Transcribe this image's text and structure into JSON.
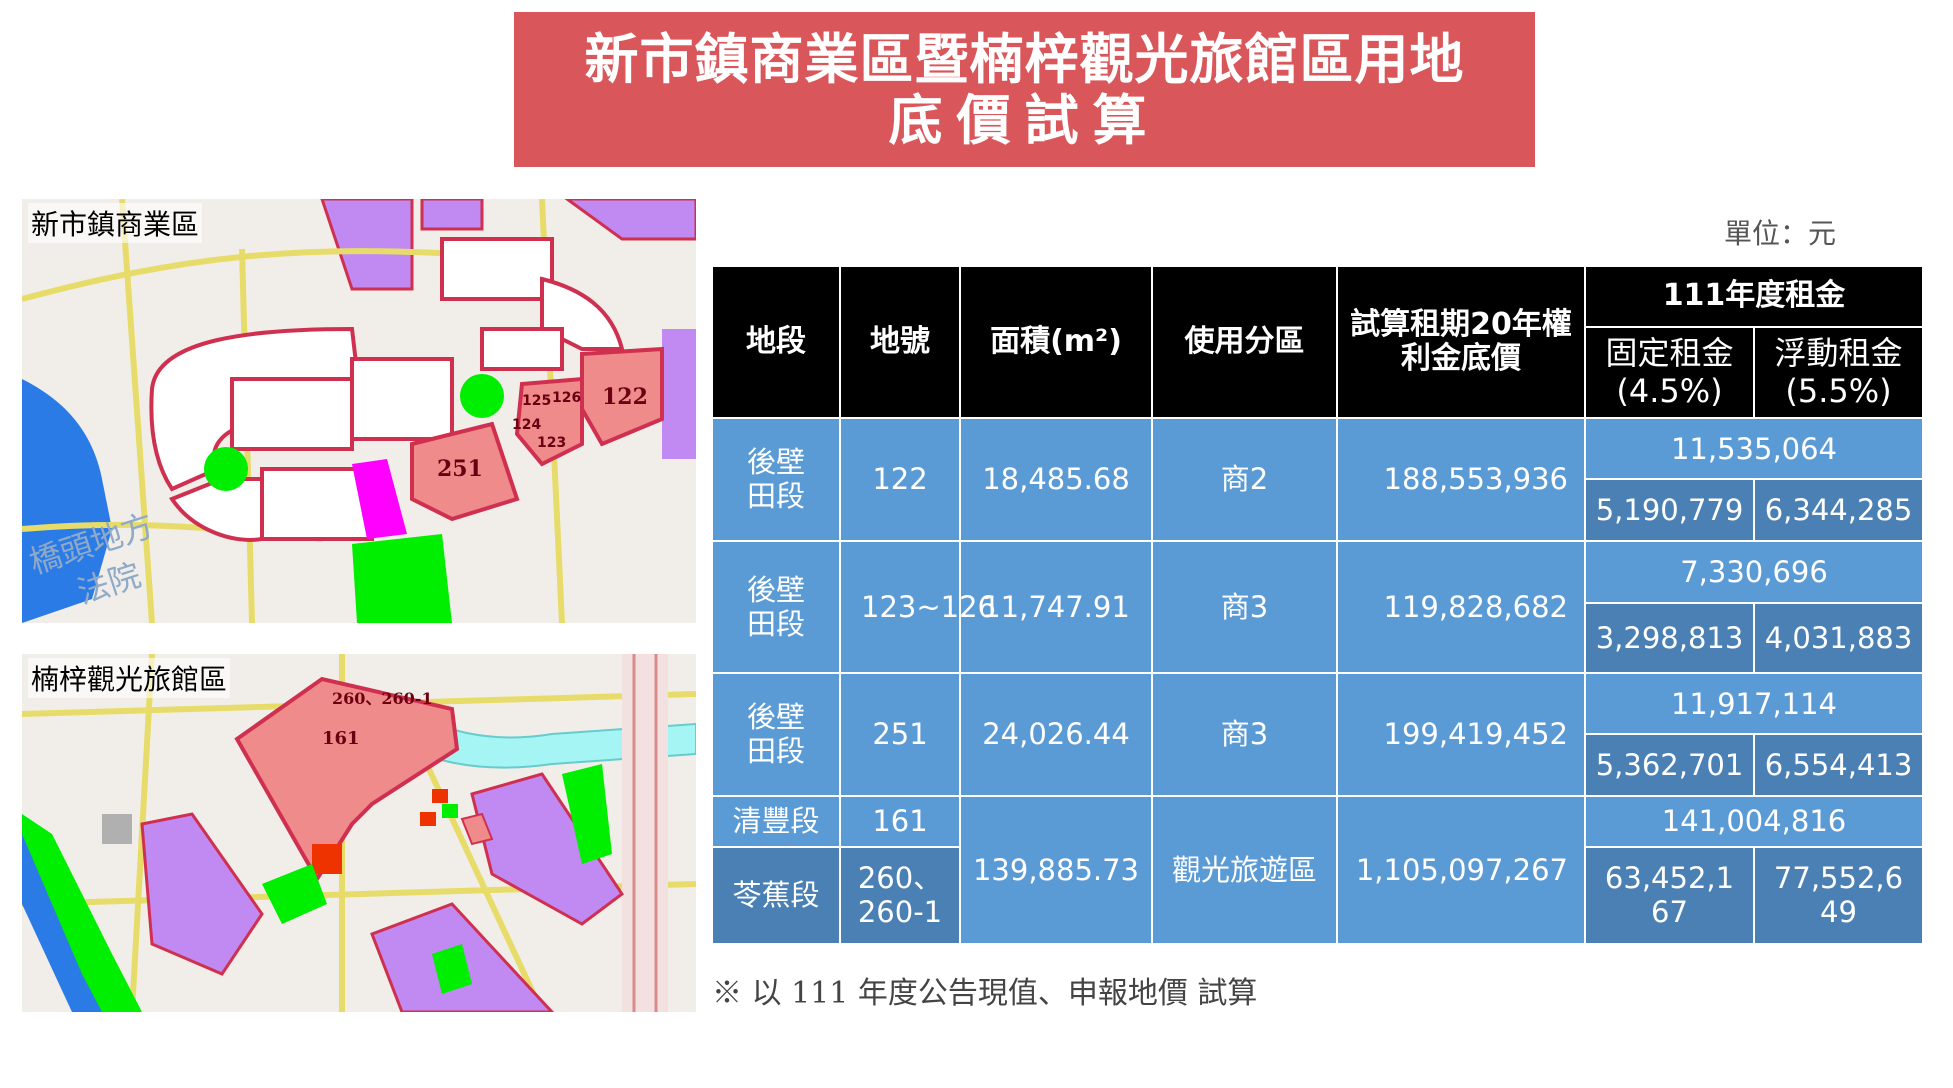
{
  "title": {
    "line1": "新市鎮商業區暨楠梓觀光旅館區用地",
    "line2": "底價試算"
  },
  "unit_label": "單位：元",
  "footnote": "※ 以 111 年度公告現值、申報地價 試算",
  "maps": {
    "top": {
      "label": "新市鎮商業區",
      "parcels": [
        "251",
        "122",
        "125",
        "126",
        "124",
        "123"
      ],
      "watermark_line1": "橋頭地方",
      "watermark_line2": "法院"
    },
    "bottom": {
      "label": "楠梓觀光旅館區",
      "parcels": [
        "161",
        "260、260-1"
      ]
    }
  },
  "table": {
    "headers": {
      "section": "地段",
      "lot": "地號",
      "area": "面積(m²)",
      "zone": "使用分區",
      "premium": "試算租期20年權利金底價",
      "rent_group": "111年度租金",
      "fixed_rent": "固定租金",
      "fixed_rate": "(4.5%)",
      "float_rent": "浮動租金",
      "float_rate": "(5.5%)"
    },
    "rows": [
      {
        "section": "後壁田段",
        "lot": "122",
        "area": "18,485.68",
        "zone": "商2",
        "premium": "188,553,936",
        "rent_total": "11,535,064",
        "fixed": "5,190,779",
        "float": "6,344,285"
      },
      {
        "section": "後壁田段",
        "lot": "123~126",
        "area": "11,747.91",
        "zone": "商3",
        "premium": "119,828,682",
        "rent_total": "7,330,696",
        "fixed": "3,298,813",
        "float": "4,031,883"
      },
      {
        "section": "後壁田段",
        "lot": "251",
        "area": "24,026.44",
        "zone": "商3",
        "premium": "199,419,452",
        "rent_total": "11,917,114",
        "fixed": "5,362,701",
        "float": "6,554,413"
      }
    ],
    "last": {
      "section_a": "清豐段",
      "lot_a": "161",
      "section_b": "苓蕉段",
      "lot_b": "260、260-1",
      "area": "139,885.73",
      "zone": "觀光旅遊區",
      "premium": "1,105,097,267",
      "rent_total": "141,004,816",
      "fixed": "63,452,167",
      "float": "77,552,649"
    }
  },
  "colors": {
    "title_bg": "#d9575a",
    "header_bg": "#000000",
    "cell_bg": "#5b9bd5",
    "cell_bg_dark": "#4a80b4",
    "parcel_red": "#f08b8b",
    "purple": "#c189f2",
    "green": "#00ff00",
    "magenta": "#ff00ff",
    "water": "#2b7be6"
  }
}
